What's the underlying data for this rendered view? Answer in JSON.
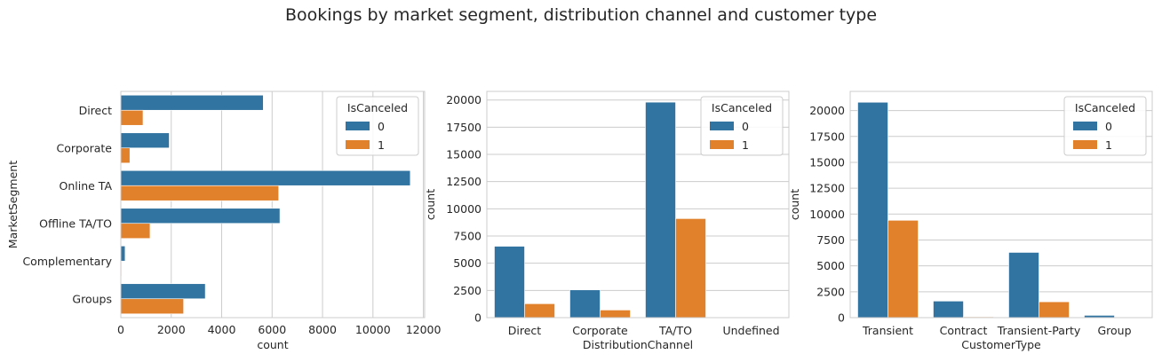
{
  "title": "Bookings by market segment, distribution channel and customer type",
  "colors": {
    "0": "#3274a1",
    "1": "#e1812c",
    "grid": "#cccccc",
    "frame": "#cccccc",
    "text": "#262626"
  },
  "chart_data": [
    {
      "type": "bar",
      "orientation": "horizontal",
      "categories": [
        "Direct",
        "Corporate",
        "Online TA",
        "Offline TA/TO",
        "Complementary",
        "Groups"
      ],
      "series": [
        {
          "name": "0",
          "values": [
            5650,
            1920,
            11480,
            6310,
            170,
            3350
          ]
        },
        {
          "name": "1",
          "values": [
            880,
            360,
            6260,
            1160,
            30,
            2490
          ]
        }
      ],
      "xlabel": "count",
      "ylabel": "MarketSegment",
      "xlim": [
        0,
        12050
      ],
      "xticks": [
        0,
        2000,
        4000,
        6000,
        8000,
        10000,
        12000
      ],
      "legend": {
        "title": "IsCanceled",
        "placement": "upper right"
      },
      "grid": true
    },
    {
      "type": "bar",
      "orientation": "vertical",
      "categories": [
        "Direct",
        "Corporate",
        "TA/TO",
        "Undefined"
      ],
      "series": [
        {
          "name": "0",
          "values": [
            6560,
            2550,
            19800,
            0
          ]
        },
        {
          "name": "1",
          "values": [
            1280,
            700,
            9100,
            0
          ]
        }
      ],
      "xlabel": "DistributionChannel",
      "ylabel": "count",
      "ylim": [
        0,
        20790
      ],
      "yticks": [
        0,
        2500,
        5000,
        7500,
        10000,
        12500,
        15000,
        17500,
        20000
      ],
      "legend": {
        "title": "IsCanceled",
        "placement": "upper right"
      },
      "grid": true
    },
    {
      "type": "bar",
      "orientation": "vertical",
      "categories": [
        "Transient",
        "Contract",
        "Transient-Party",
        "Group"
      ],
      "series": [
        {
          "name": "0",
          "values": [
            20800,
            1600,
            6300,
            220
          ]
        },
        {
          "name": "1",
          "values": [
            9400,
            80,
            1530,
            30
          ]
        }
      ],
      "xlabel": "CustomerType",
      "ylabel": "count",
      "ylim": [
        0,
        21850
      ],
      "yticks": [
        0,
        2500,
        5000,
        7500,
        10000,
        12500,
        15000,
        17500,
        20000
      ],
      "legend": {
        "title": "IsCanceled",
        "placement": "upper right"
      },
      "grid": true
    }
  ]
}
